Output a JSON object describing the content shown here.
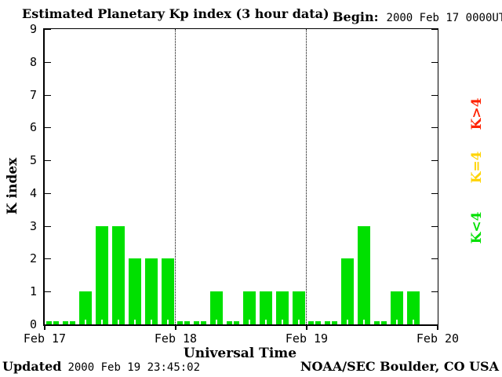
{
  "header": {
    "title": "Estimated Planetary Kp index (3 hour data)",
    "begin_label": "Begin:",
    "begin_value": "2000 Feb 17 0000UT"
  },
  "footer": {
    "updated_label": "Updated",
    "updated_value": "2000 Feb 19 23:45:02",
    "source": "NOAA/SEC Boulder, CO USA"
  },
  "chart_data": {
    "type": "bar",
    "title": "Estimated Planetary Kp index (3 hour data)",
    "xlabel": "Universal Time",
    "ylabel": "K index",
    "ylim": [
      0,
      9
    ],
    "yticks": [
      0,
      1,
      2,
      3,
      4,
      5,
      6,
      7,
      8,
      9
    ],
    "x_day_labels": [
      "Feb 17",
      "Feb 18",
      "Feb 19",
      "Feb 20"
    ],
    "bars_per_day": 8,
    "interval_hours": 3,
    "values_by_day": {
      "Feb 17": [
        0,
        0,
        1,
        3,
        3,
        2,
        2,
        2
      ],
      "Feb 18": [
        0,
        0,
        1,
        0,
        1,
        1,
        1,
        1
      ],
      "Feb 19": [
        0,
        0,
        2,
        3,
        0,
        1,
        1,
        null
      ]
    },
    "values": [
      0,
      0,
      1,
      3,
      3,
      2,
      2,
      2,
      0,
      0,
      1,
      0,
      1,
      1,
      1,
      1,
      0,
      0,
      2,
      3,
      0,
      1,
      1,
      null
    ],
    "bar_color": "#00e000",
    "background_color": "#ffffff",
    "axis_color": "#000000",
    "grid": "dotted vertical lines at day boundaries, no horizontal gridlines",
    "legend": {
      "position": "right-rotated",
      "items": [
        {
          "label": "K>4",
          "color": "#ff2200"
        },
        {
          "label": "K=4",
          "color": "#ffd400"
        },
        {
          "label": "K<4",
          "color": "#00e000"
        }
      ]
    }
  }
}
